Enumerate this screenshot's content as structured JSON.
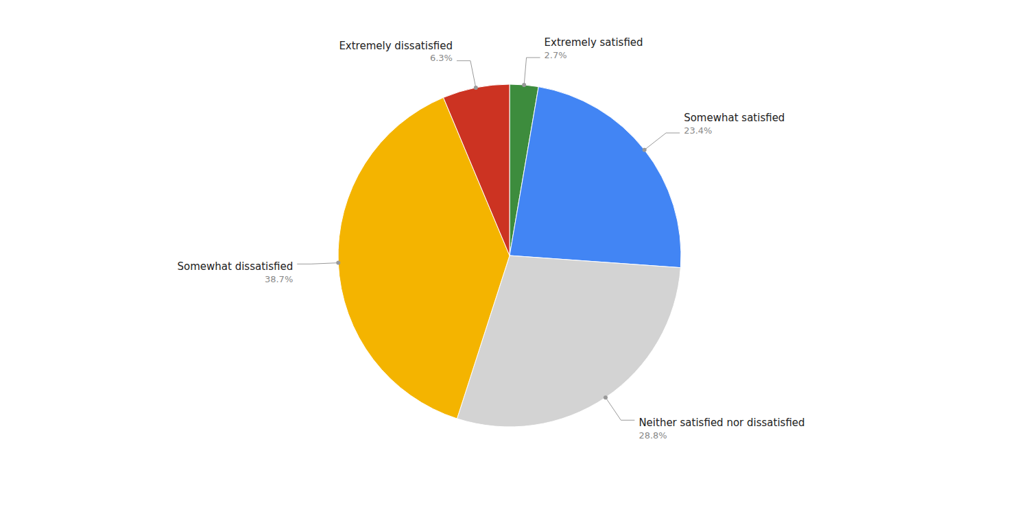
{
  "chart_data": {
    "type": "pie",
    "categories": [
      "Extremely satisfied",
      "Somewhat satisfied",
      "Neither satisfied nor dissatisfied",
      "Somewhat dissatisfied",
      "Extremely dissatisfied"
    ],
    "values": [
      2.7,
      23.4,
      28.8,
      38.7,
      6.3
    ],
    "value_labels": [
      "2.7%",
      "23.4%",
      "28.8%",
      "38.7%",
      "6.3%"
    ],
    "colors": [
      "#3d8c3d",
      "#4285f4",
      "#d3d3d3",
      "#f4b400",
      "#cc3322"
    ],
    "data_labels": true,
    "legend": null
  }
}
